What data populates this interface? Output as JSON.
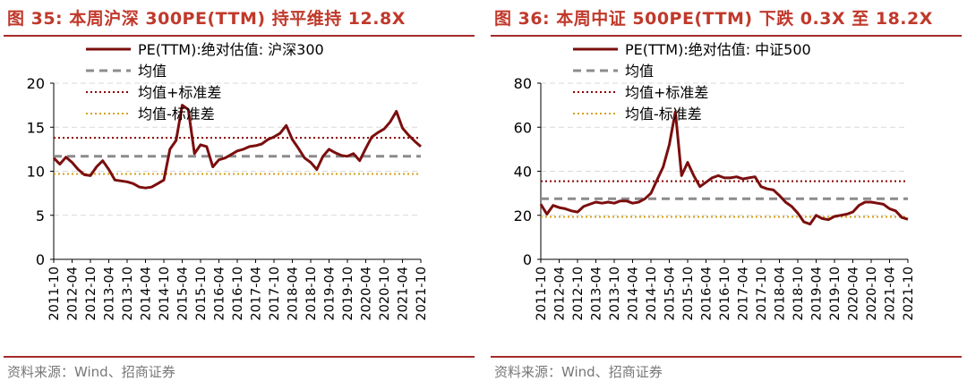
{
  "panels": [
    {
      "title": "图 35:  本周沪深 300PE(TTM) 持平维持 12.8X",
      "source": "资料来源：Wind、招商证券",
      "chart_data": {
        "type": "line",
        "yticks": [
          0,
          5,
          10,
          15,
          20
        ],
        "ylim": [
          0,
          20
        ],
        "xticks": [
          "2011-10",
          "2012-04",
          "2012-10",
          "2013-04",
          "2013-10",
          "2014-04",
          "2014-10",
          "2015-04",
          "2015-10",
          "2016-04",
          "2016-10",
          "2017-04",
          "2017-10",
          "2018-04",
          "2018-10",
          "2019-04",
          "2019-10",
          "2020-04",
          "2020-10",
          "2021-04",
          "2021-10"
        ],
        "grid": "horizontal",
        "legend_position": "top-left",
        "legend": {
          "pe": "PE(TTM):绝对估值: 沪深300",
          "mean": "均值",
          "plus": "均值+标准差",
          "minus": "均值-标准差"
        },
        "mean": 11.7,
        "mean_plus_std": 13.8,
        "mean_minus_std": 9.7,
        "x": [
          "2011-10",
          "2011-12",
          "2012-02",
          "2012-04",
          "2012-06",
          "2012-08",
          "2012-10",
          "2012-12",
          "2013-02",
          "2013-04",
          "2013-06",
          "2013-08",
          "2013-10",
          "2013-12",
          "2014-02",
          "2014-04",
          "2014-06",
          "2014-08",
          "2014-10",
          "2014-12",
          "2015-02",
          "2015-04",
          "2015-06",
          "2015-08",
          "2015-10",
          "2015-12",
          "2016-02",
          "2016-04",
          "2016-06",
          "2016-08",
          "2016-10",
          "2016-12",
          "2017-02",
          "2017-04",
          "2017-06",
          "2017-08",
          "2017-10",
          "2017-12",
          "2018-02",
          "2018-04",
          "2018-06",
          "2018-08",
          "2018-10",
          "2018-12",
          "2019-02",
          "2019-04",
          "2019-06",
          "2019-08",
          "2019-10",
          "2019-12",
          "2020-02",
          "2020-04",
          "2020-06",
          "2020-08",
          "2020-10",
          "2020-12",
          "2021-02",
          "2021-04",
          "2021-06",
          "2021-08",
          "2021-10"
        ],
        "values": [
          11.5,
          10.8,
          11.6,
          11.0,
          10.2,
          9.6,
          9.5,
          10.5,
          11.2,
          10.2,
          9.0,
          8.9,
          8.8,
          8.6,
          8.2,
          8.1,
          8.2,
          8.6,
          9.0,
          12.5,
          13.5,
          17.5,
          17.0,
          12.0,
          13.0,
          12.8,
          10.5,
          11.3,
          11.5,
          11.9,
          12.3,
          12.5,
          12.8,
          12.9,
          13.1,
          13.6,
          13.9,
          14.3,
          15.2,
          13.6,
          12.6,
          11.5,
          11.0,
          10.2,
          11.7,
          12.5,
          12.1,
          11.8,
          11.7,
          12.0,
          11.2,
          12.6,
          13.9,
          14.4,
          14.8,
          15.6,
          16.8,
          14.9,
          14.1,
          13.4,
          12.8
        ]
      }
    },
    {
      "title": "图 36:  本周中证 500PE(TTM) 下跌 0.3X 至 18.2X",
      "source": "资料来源：Wind、招商证券",
      "chart_data": {
        "type": "line",
        "yticks": [
          0,
          20,
          40,
          60,
          80
        ],
        "ylim": [
          0,
          80
        ],
        "xticks": [
          "2011-10",
          "2012-04",
          "2012-10",
          "2013-04",
          "2013-10",
          "2014-04",
          "2014-10",
          "2015-04",
          "2015-10",
          "2016-04",
          "2016-10",
          "2017-04",
          "2017-10",
          "2018-04",
          "2018-10",
          "2019-04",
          "2019-10",
          "2020-04",
          "2020-10",
          "2021-04",
          "2021-10"
        ],
        "grid": "horizontal",
        "legend_position": "top-left",
        "legend": {
          "pe": "PE(TTM):绝对估值: 中证500",
          "mean": "均值",
          "plus": "均值+标准差",
          "minus": "均值-标准差"
        },
        "mean": 27.5,
        "mean_plus_std": 35.5,
        "mean_minus_std": 19.3,
        "x": [
          "2011-10",
          "2011-12",
          "2012-02",
          "2012-04",
          "2012-06",
          "2012-08",
          "2012-10",
          "2012-12",
          "2013-02",
          "2013-04",
          "2013-06",
          "2013-08",
          "2013-10",
          "2013-12",
          "2014-02",
          "2014-04",
          "2014-06",
          "2014-08",
          "2014-10",
          "2014-12",
          "2015-02",
          "2015-04",
          "2015-06",
          "2015-08",
          "2015-10",
          "2015-12",
          "2016-02",
          "2016-04",
          "2016-06",
          "2016-08",
          "2016-10",
          "2016-12",
          "2017-02",
          "2017-04",
          "2017-06",
          "2017-08",
          "2017-10",
          "2017-12",
          "2018-02",
          "2018-04",
          "2018-06",
          "2018-08",
          "2018-10",
          "2018-12",
          "2019-02",
          "2019-04",
          "2019-06",
          "2019-08",
          "2019-10",
          "2019-12",
          "2020-02",
          "2020-04",
          "2020-06",
          "2020-08",
          "2020-10",
          "2020-12",
          "2021-02",
          "2021-04",
          "2021-06",
          "2021-08",
          "2021-10"
        ],
        "values": [
          25.0,
          20.5,
          24.5,
          23.5,
          23.0,
          22.0,
          21.5,
          24.0,
          25.0,
          26.0,
          25.5,
          26.0,
          25.5,
          26.5,
          26.5,
          25.5,
          26.0,
          27.5,
          30.0,
          36.0,
          42.0,
          52.0,
          67.0,
          38.0,
          44.0,
          38.0,
          33.0,
          35.0,
          37.0,
          38.0,
          37.0,
          37.0,
          37.5,
          36.5,
          37.0,
          37.5,
          33.0,
          32.0,
          31.5,
          29.0,
          26.0,
          24.0,
          21.0,
          17.0,
          16.0,
          20.0,
          18.5,
          18.0,
          19.5,
          20.0,
          20.5,
          21.5,
          24.5,
          26.0,
          26.0,
          25.5,
          25.0,
          23.0,
          22.0,
          19.0,
          18.2
        ]
      }
    }
  ]
}
